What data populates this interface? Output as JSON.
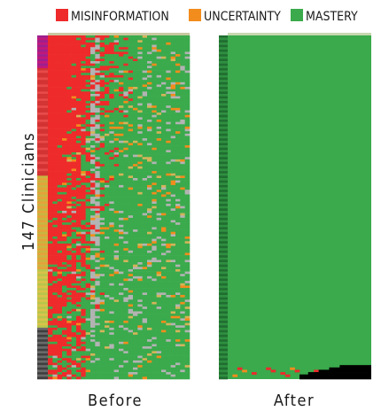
{
  "chart_data": {
    "type": "heatmap",
    "ylabel": "147 Clinicians",
    "rows": 147,
    "columns": 30,
    "legend": [
      {
        "label": "MISINFORMATION",
        "color": "#ee2a2a"
      },
      {
        "label": "UNCERTAINTY",
        "color": "#f28c1c"
      },
      {
        "label": "MASTERY",
        "color": "#3aaa4c"
      }
    ],
    "other_colors": {
      "gray": "#b3b3b3",
      "black": "#000000",
      "tan": "#d4b45a"
    },
    "panels": [
      {
        "name": "Before",
        "description_rule": "rows sorted by misinformation; red prevalence decreases down and to the right"
      },
      {
        "name": "After",
        "description_rule": "nearly all mastery; a few misinformation/uncertainty cells and black cells in the last rows"
      }
    ]
  }
}
